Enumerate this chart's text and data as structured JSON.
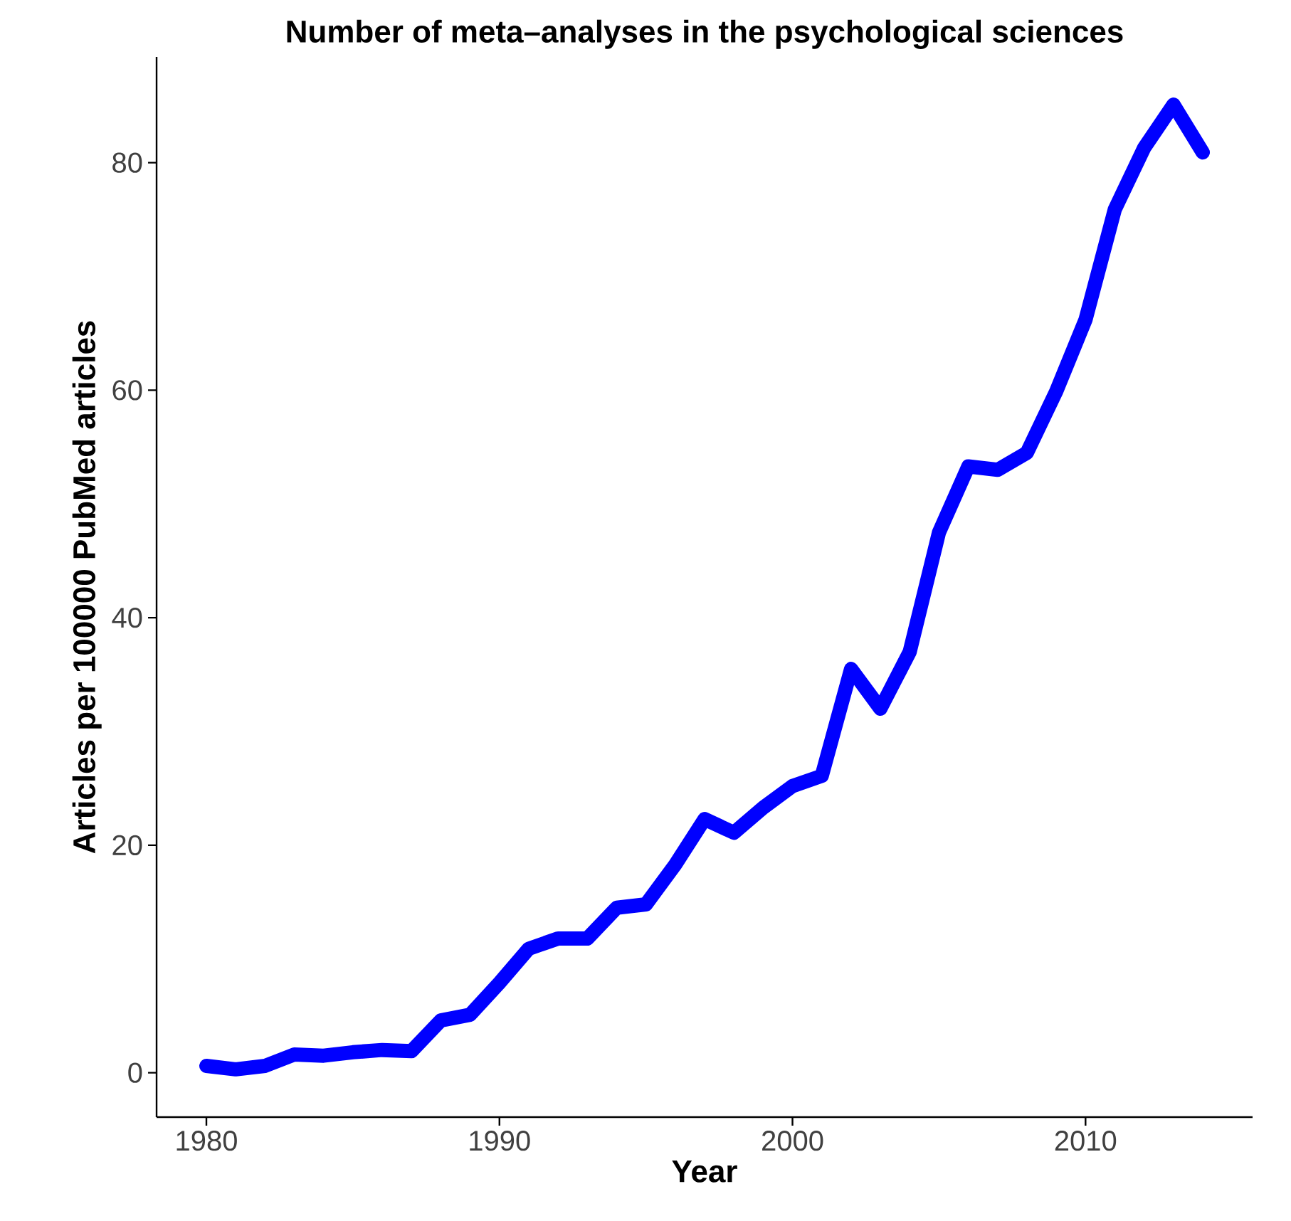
{
  "chart_data": {
    "type": "line",
    "title": "Number of meta–analyses in the psychological sciences",
    "xlabel": "Year",
    "ylabel": "Articles per 100000 PubMed articles",
    "x": [
      1980,
      1981,
      1982,
      1983,
      1984,
      1985,
      1986,
      1987,
      1988,
      1989,
      1990,
      1991,
      1992,
      1993,
      1994,
      1995,
      1996,
      1997,
      1998,
      1999,
      2000,
      2001,
      2002,
      2003,
      2004,
      2005,
      2006,
      2007,
      2008,
      2009,
      2010,
      2011,
      2012,
      2013,
      2014
    ],
    "series": [
      {
        "color": "#0000ff",
        "values": [
          0.6,
          0.3,
          0.6,
          1.6,
          1.5,
          1.8,
          2.0,
          1.9,
          4.6,
          5.1,
          7.9,
          10.9,
          11.8,
          11.8,
          14.5,
          14.8,
          18.3,
          22.3,
          21.1,
          23.3,
          25.2,
          26.1,
          35.5,
          32.0,
          37.0,
          47.5,
          53.3,
          53.0,
          54.5,
          59.9,
          66.2,
          75.9,
          81.3,
          85.1,
          80.9
        ]
      }
    ],
    "xlim": [
      1978.3,
      2015.7
    ],
    "ylim": [
      -3.9,
      89.3
    ],
    "xticks": [
      1980,
      1990,
      2000,
      2010
    ],
    "yticks": [
      0,
      20,
      40,
      60,
      80
    ],
    "grid": false,
    "marker": "none",
    "line_style": "solid"
  }
}
